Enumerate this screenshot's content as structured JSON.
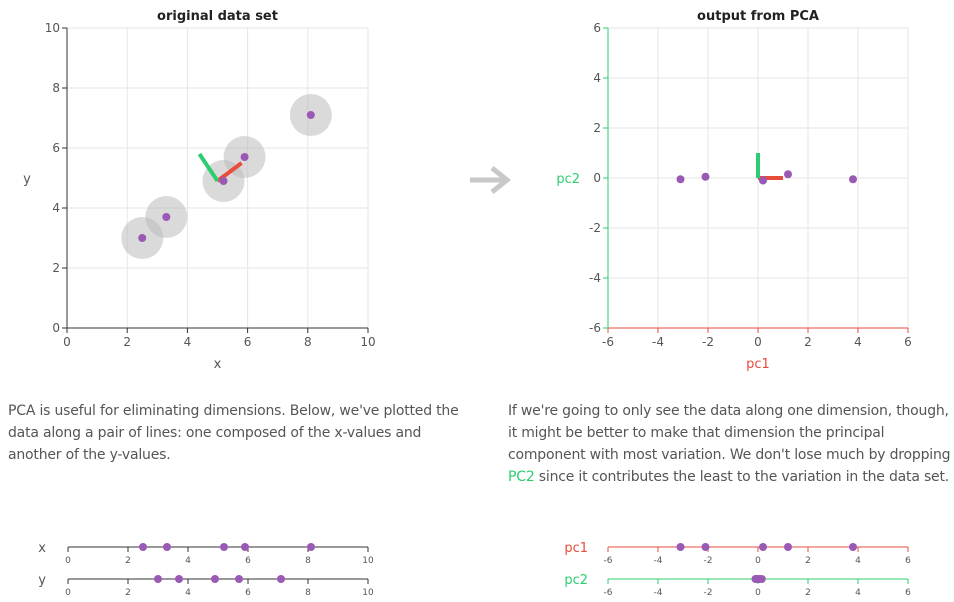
{
  "colors": {
    "point": "#9b59b6",
    "circle": "#bbbbbb",
    "pc1": "#e74c3c",
    "pc2": "#2ecc71",
    "grid": "#e6e6e6",
    "axis": "#333333",
    "arrow": "#c8c8c8"
  },
  "arrow_icon": "right-arrow-icon",
  "chart_data": [
    {
      "type": "scatter",
      "title": "original data set",
      "xlabel": "x",
      "ylabel": "y",
      "xlim": [
        0,
        10
      ],
      "ylim": [
        0,
        10
      ],
      "xticks": [
        "0",
        "2",
        "4",
        "6",
        "8",
        "10"
      ],
      "yticks": [
        "0",
        "2",
        "4",
        "6",
        "8",
        "10"
      ],
      "grid": true,
      "points": [
        {
          "x": 2.5,
          "y": 3.0
        },
        {
          "x": 3.3,
          "y": 3.7
        },
        {
          "x": 5.2,
          "y": 4.9
        },
        {
          "x": 5.9,
          "y": 5.7
        },
        {
          "x": 8.1,
          "y": 7.1
        }
      ],
      "principal_vectors": [
        {
          "name": "pc1",
          "x0": 5.0,
          "y0": 4.9,
          "x1": 5.8,
          "y1": 5.5
        },
        {
          "name": "pc2",
          "x0": 5.0,
          "y0": 4.9,
          "x1": 4.4,
          "y1": 5.8
        }
      ]
    },
    {
      "type": "scatter",
      "title": "output from PCA",
      "xlabel": "pc1",
      "ylabel": "pc2",
      "xlim": [
        -6,
        6
      ],
      "ylim": [
        -6,
        6
      ],
      "xticks": [
        "-6",
        "-4",
        "-2",
        "0",
        "2",
        "4",
        "6"
      ],
      "yticks": [
        "-6",
        "-4",
        "-2",
        "0",
        "2",
        "4",
        "6"
      ],
      "grid": true,
      "points": [
        {
          "x": -3.1,
          "y": -0.05
        },
        {
          "x": -2.1,
          "y": 0.05
        },
        {
          "x": 0.2,
          "y": -0.1
        },
        {
          "x": 1.2,
          "y": 0.15
        },
        {
          "x": 3.8,
          "y": -0.05
        }
      ],
      "principal_vectors": [
        {
          "name": "pc1",
          "x0": 0,
          "y0": 0,
          "x1": 1.0,
          "y1": 0
        },
        {
          "name": "pc2",
          "x0": 0,
          "y0": 0,
          "x1": 0,
          "y1": 1.0
        }
      ]
    },
    {
      "type": "scatter",
      "title": "",
      "lines": [
        {
          "label": "x",
          "values": [
            2.5,
            3.3,
            5.2,
            5.9,
            8.1
          ]
        },
        {
          "label": "y",
          "values": [
            3.0,
            3.7,
            4.9,
            5.7,
            7.1
          ]
        }
      ],
      "xlim": [
        0,
        10
      ],
      "xticks": [
        "0",
        "2",
        "4",
        "6",
        "8",
        "10"
      ]
    },
    {
      "type": "scatter",
      "title": "",
      "lines": [
        {
          "label": "pc1",
          "values": [
            -3.1,
            -2.1,
            0.2,
            1.2,
            3.8
          ]
        },
        {
          "label": "pc2",
          "values": [
            -0.05,
            0.05,
            -0.1,
            0.15,
            -0.05
          ]
        }
      ],
      "xlim": [
        -6,
        6
      ],
      "xticks": [
        "-6",
        "-4",
        "-2",
        "0",
        "2",
        "4",
        "6"
      ]
    }
  ],
  "paragraphs": {
    "left": "PCA is useful for eliminating dimensions. Below, we've plotted the data along a pair of lines: one composed of the x-values and another of the y-values.",
    "right_before": "If we're going to only see the data along one dimension, though, it might be better to make that dimension the principal component with most variation. We don't lose much by dropping ",
    "right_highlight": "PC2",
    "right_after": " since it contributes the least to the variation in the data set."
  }
}
